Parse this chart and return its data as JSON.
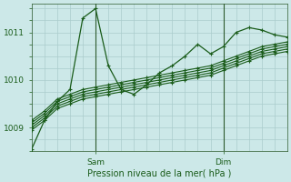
{
  "title": "",
  "xlabel": "Pression niveau de la mer( hPa )",
  "ylabel": "",
  "bg_color": "#cce8e8",
  "plot_bg_color": "#cce8e8",
  "grid_color": "#aacccc",
  "line_color": "#1a5c1a",
  "ylim": [
    1008.5,
    1011.6
  ],
  "xlim": [
    0,
    48
  ],
  "yticks": [
    1009,
    1010,
    1011
  ],
  "xtick_positions": [
    12,
    36
  ],
  "xtick_labels": [
    "Sam",
    "Dim"
  ],
  "vline_positions": [
    12,
    36
  ],
  "series": [
    [
      1008.55,
      1009.15,
      1009.55,
      1009.8,
      1011.3,
      1011.5,
      1010.3,
      1009.8,
      1009.7,
      1009.9,
      1010.15,
      1010.3,
      1010.5,
      1010.75,
      1010.55,
      1010.7,
      1011.0,
      1011.1,
      1011.05,
      1010.95,
      1010.9
    ],
    [
      1009.15,
      1009.35,
      1009.6,
      1009.7,
      1009.8,
      1009.85,
      1009.9,
      1009.95,
      1010.0,
      1010.05,
      1010.1,
      1010.15,
      1010.2,
      1010.25,
      1010.3,
      1010.4,
      1010.5,
      1010.6,
      1010.7,
      1010.75,
      1010.8
    ],
    [
      1009.1,
      1009.3,
      1009.55,
      1009.65,
      1009.75,
      1009.8,
      1009.85,
      1009.9,
      1009.95,
      1010.0,
      1010.05,
      1010.1,
      1010.15,
      1010.2,
      1010.25,
      1010.35,
      1010.45,
      1010.55,
      1010.65,
      1010.7,
      1010.75
    ],
    [
      1009.05,
      1009.25,
      1009.5,
      1009.6,
      1009.7,
      1009.75,
      1009.8,
      1009.85,
      1009.9,
      1009.95,
      1010.0,
      1010.05,
      1010.1,
      1010.15,
      1010.2,
      1010.3,
      1010.4,
      1010.5,
      1010.6,
      1010.65,
      1010.7
    ],
    [
      1009.0,
      1009.2,
      1009.45,
      1009.55,
      1009.65,
      1009.7,
      1009.75,
      1009.8,
      1009.85,
      1009.9,
      1009.95,
      1010.0,
      1010.05,
      1010.1,
      1010.15,
      1010.25,
      1010.35,
      1010.45,
      1010.55,
      1010.6,
      1010.65
    ],
    [
      1008.95,
      1009.15,
      1009.4,
      1009.5,
      1009.6,
      1009.65,
      1009.7,
      1009.75,
      1009.8,
      1009.85,
      1009.9,
      1009.95,
      1010.0,
      1010.05,
      1010.1,
      1010.2,
      1010.3,
      1010.4,
      1010.5,
      1010.55,
      1010.6
    ]
  ],
  "x_points": [
    0,
    2.4,
    4.8,
    7.2,
    9.6,
    12,
    14.4,
    16.8,
    19.2,
    21.6,
    24,
    26.4,
    28.8,
    31.2,
    33.6,
    36,
    38.4,
    40.8,
    43.2,
    45.6,
    48
  ]
}
